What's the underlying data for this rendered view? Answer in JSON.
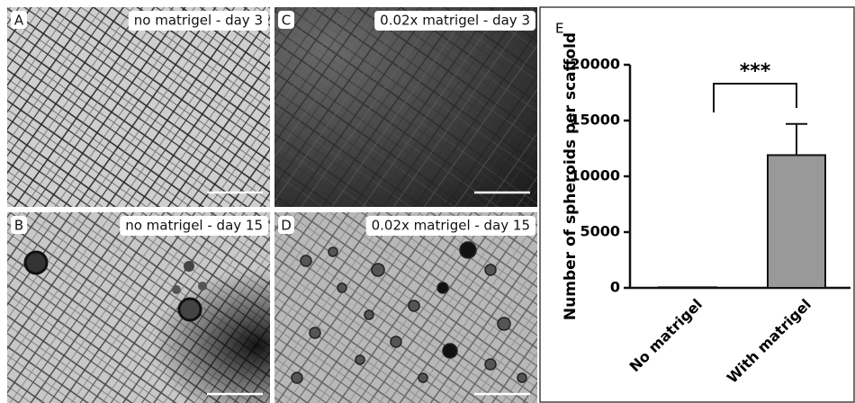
{
  "panels": [
    {
      "letter": "A",
      "label": "no matrigel - day 3"
    },
    {
      "letter": "B",
      "label": "no matrigel - day 15"
    },
    {
      "letter": "C",
      "label": "0.02x matrigel - day 3"
    },
    {
      "letter": "D",
      "label": "0.02x matrigel - day 15"
    }
  ],
  "chart_data": {
    "type": "bar",
    "panel_label": "E",
    "y_label": "Number of spheroids per scaffold",
    "categories": [
      "No matrigel",
      "With matrigel"
    ],
    "values": [
      50,
      11900
    ],
    "errors": [
      null,
      2800
    ],
    "color": "#999999",
    "annotation": "***",
    "ylim": [
      0,
      20000
    ],
    "yticks": [
      0,
      5000,
      10000,
      15000,
      20000
    ]
  }
}
